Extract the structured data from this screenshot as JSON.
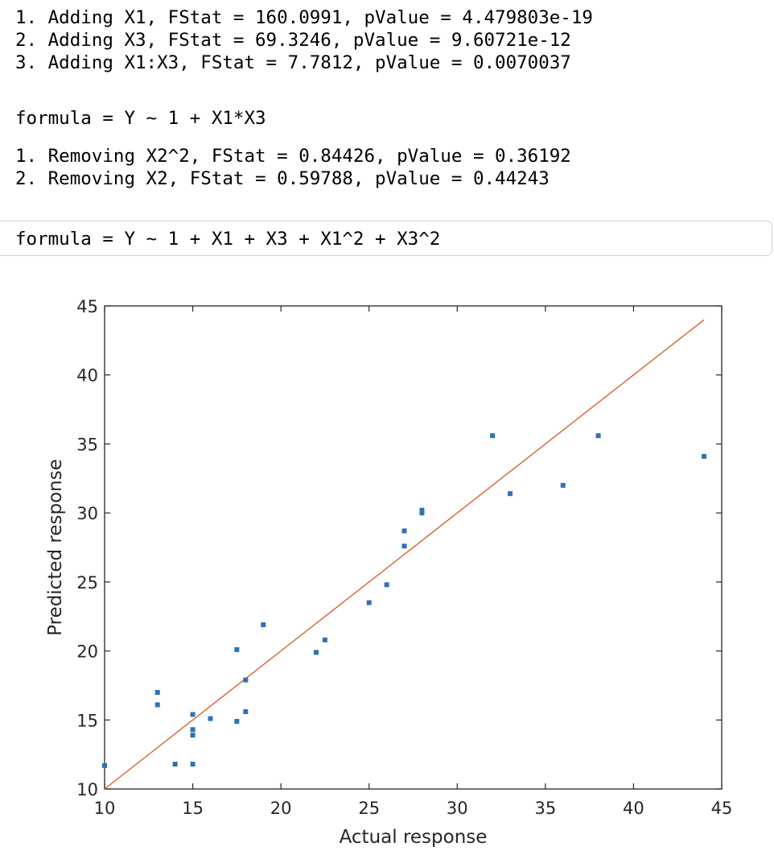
{
  "console": {
    "add_steps": [
      "1. Adding X1, FStat = 160.0991, pValue = 4.479803e-19",
      "2. Adding X3, FStat = 69.3246, pValue = 9.60721e-12",
      "3. Adding X1:X3, FStat = 7.7812, pValue = 0.0070037"
    ],
    "formula1": "formula = Y ~ 1 + X1*X3",
    "remove_steps": [
      "1. Removing X2^2, FStat = 0.84426, pValue = 0.36192",
      "2. Removing X2, FStat = 0.59788, pValue = 0.44243"
    ],
    "formula2": "formula = Y ~ 1 + X1 + X3 + X1^2 + X3^2"
  },
  "chart_data": {
    "type": "scatter",
    "xlabel": "Actual response",
    "ylabel": "Predicted response",
    "xlim": [
      10,
      45
    ],
    "ylim": [
      10,
      45
    ],
    "xticks": [
      "10",
      "15",
      "20",
      "25",
      "30",
      "35",
      "40",
      "45"
    ],
    "yticks": [
      "10",
      "15",
      "20",
      "25",
      "30",
      "35",
      "40",
      "45"
    ],
    "grid": false,
    "colors": {
      "points": "#2e72b8",
      "reference_line": "#d9622b",
      "axes": "#262626"
    },
    "points": [
      [
        10,
        11.7
      ],
      [
        13,
        17.0
      ],
      [
        13,
        16.1
      ],
      [
        14,
        11.8
      ],
      [
        15,
        15.4
      ],
      [
        15,
        14.3
      ],
      [
        15,
        13.9
      ],
      [
        15,
        11.8
      ],
      [
        16,
        15.1
      ],
      [
        17.5,
        20.1
      ],
      [
        17.5,
        14.9
      ],
      [
        18,
        17.9
      ],
      [
        18,
        15.6
      ],
      [
        19,
        21.9
      ],
      [
        22,
        19.9
      ],
      [
        22.5,
        20.8
      ],
      [
        25,
        23.5
      ],
      [
        26,
        24.8
      ],
      [
        27,
        28.7
      ],
      [
        27,
        27.6
      ],
      [
        28,
        30.2
      ],
      [
        28,
        30.0
      ],
      [
        32,
        35.6
      ],
      [
        33,
        31.4
      ],
      [
        36,
        32.0
      ],
      [
        38,
        35.6
      ],
      [
        44,
        34.1
      ]
    ],
    "reference_line": [
      [
        10,
        10
      ],
      [
        44,
        44
      ]
    ]
  }
}
